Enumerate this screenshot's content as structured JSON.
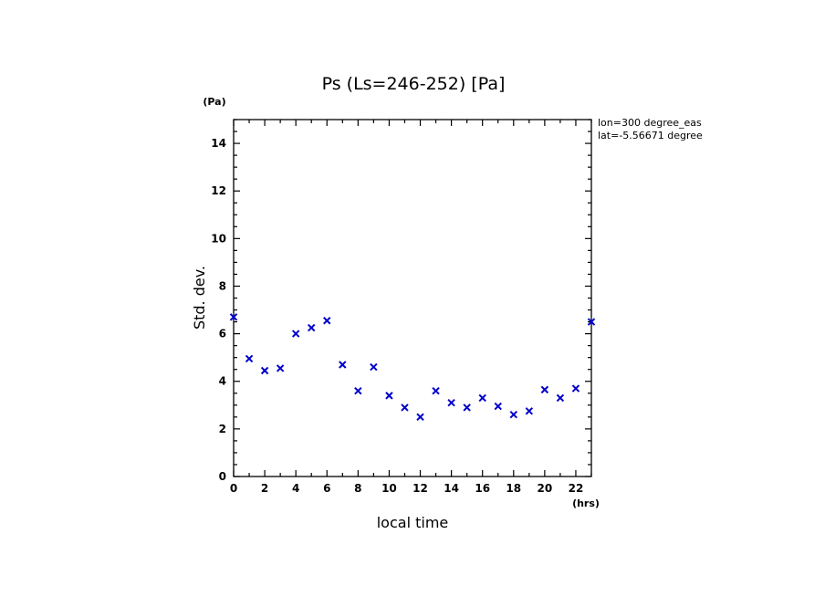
{
  "chart_data": {
    "type": "scatter",
    "title": "Ps (Ls=246-252) [Pa]",
    "xlabel": "local time",
    "ylabel": "Std. dev.",
    "x_unit": "(hrs)",
    "y_unit": "(Pa)",
    "xlim": [
      0,
      23
    ],
    "ylim": [
      0,
      15
    ],
    "x_ticks": [
      0,
      2,
      4,
      6,
      8,
      10,
      12,
      14,
      16,
      18,
      20,
      22
    ],
    "y_ticks": [
      0,
      2,
      4,
      6,
      8,
      10,
      12,
      14
    ],
    "grid": false,
    "marker": "x",
    "marker_color": "#0000cc",
    "annotations": [
      "lon=300 degree_eas",
      "lat=-5.56671 degree"
    ],
    "series": [
      {
        "x": [
          0,
          1,
          2,
          3,
          4,
          5,
          6,
          7,
          8,
          9,
          10,
          11,
          12,
          13,
          14,
          15,
          16,
          17,
          18,
          19,
          20,
          21,
          22,
          23
        ],
        "y": [
          6.7,
          4.95,
          4.45,
          4.55,
          6.0,
          6.25,
          6.55,
          4.7,
          3.6,
          4.6,
          3.4,
          2.9,
          2.5,
          3.6,
          3.1,
          2.9,
          3.3,
          2.95,
          2.6,
          2.75,
          3.65,
          3.3,
          3.7,
          6.5
        ]
      }
    ]
  }
}
